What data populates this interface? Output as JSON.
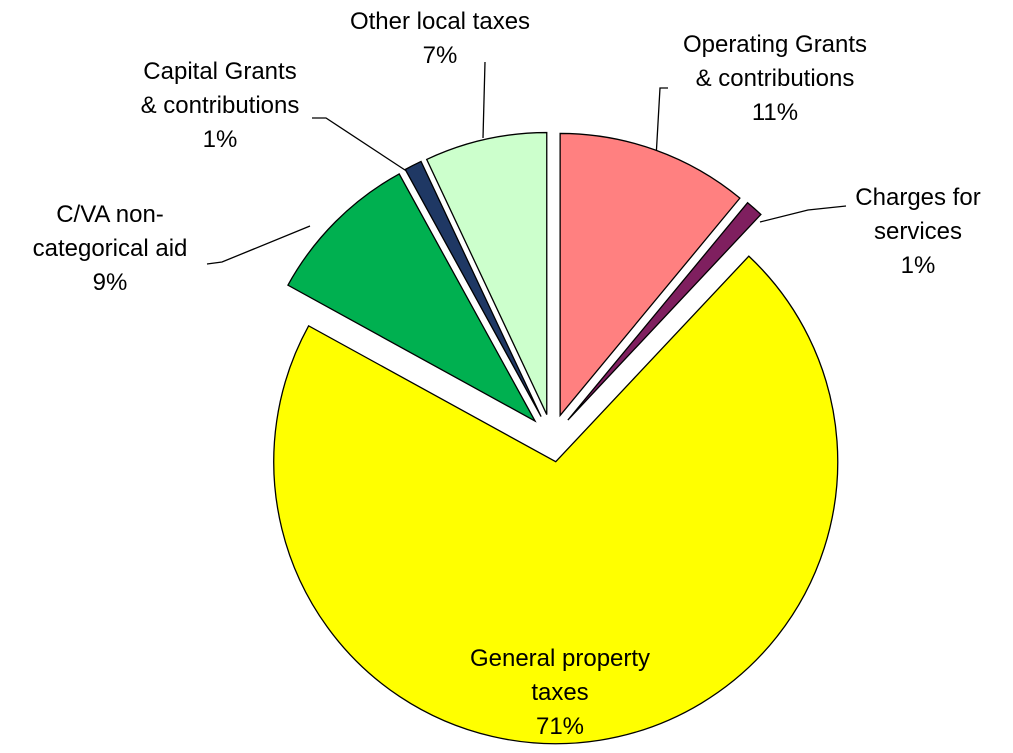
{
  "chart_data": {
    "type": "pie",
    "categories": [
      "Operating Grants & contributions",
      "Charges for services",
      "General property taxes",
      "C/VA non-categorical aid",
      "Capital Grants & contributions",
      "Other local taxes"
    ],
    "values": [
      11,
      1,
      71,
      9,
      1,
      7
    ],
    "value_labels": [
      "11%",
      "1%",
      "71%",
      "9%",
      "1%",
      "7%"
    ],
    "colors": [
      "#ff8080",
      "#7f1f5f",
      "#ffff00",
      "#00b050",
      "#1f3864",
      "#ccffcc"
    ]
  }
}
